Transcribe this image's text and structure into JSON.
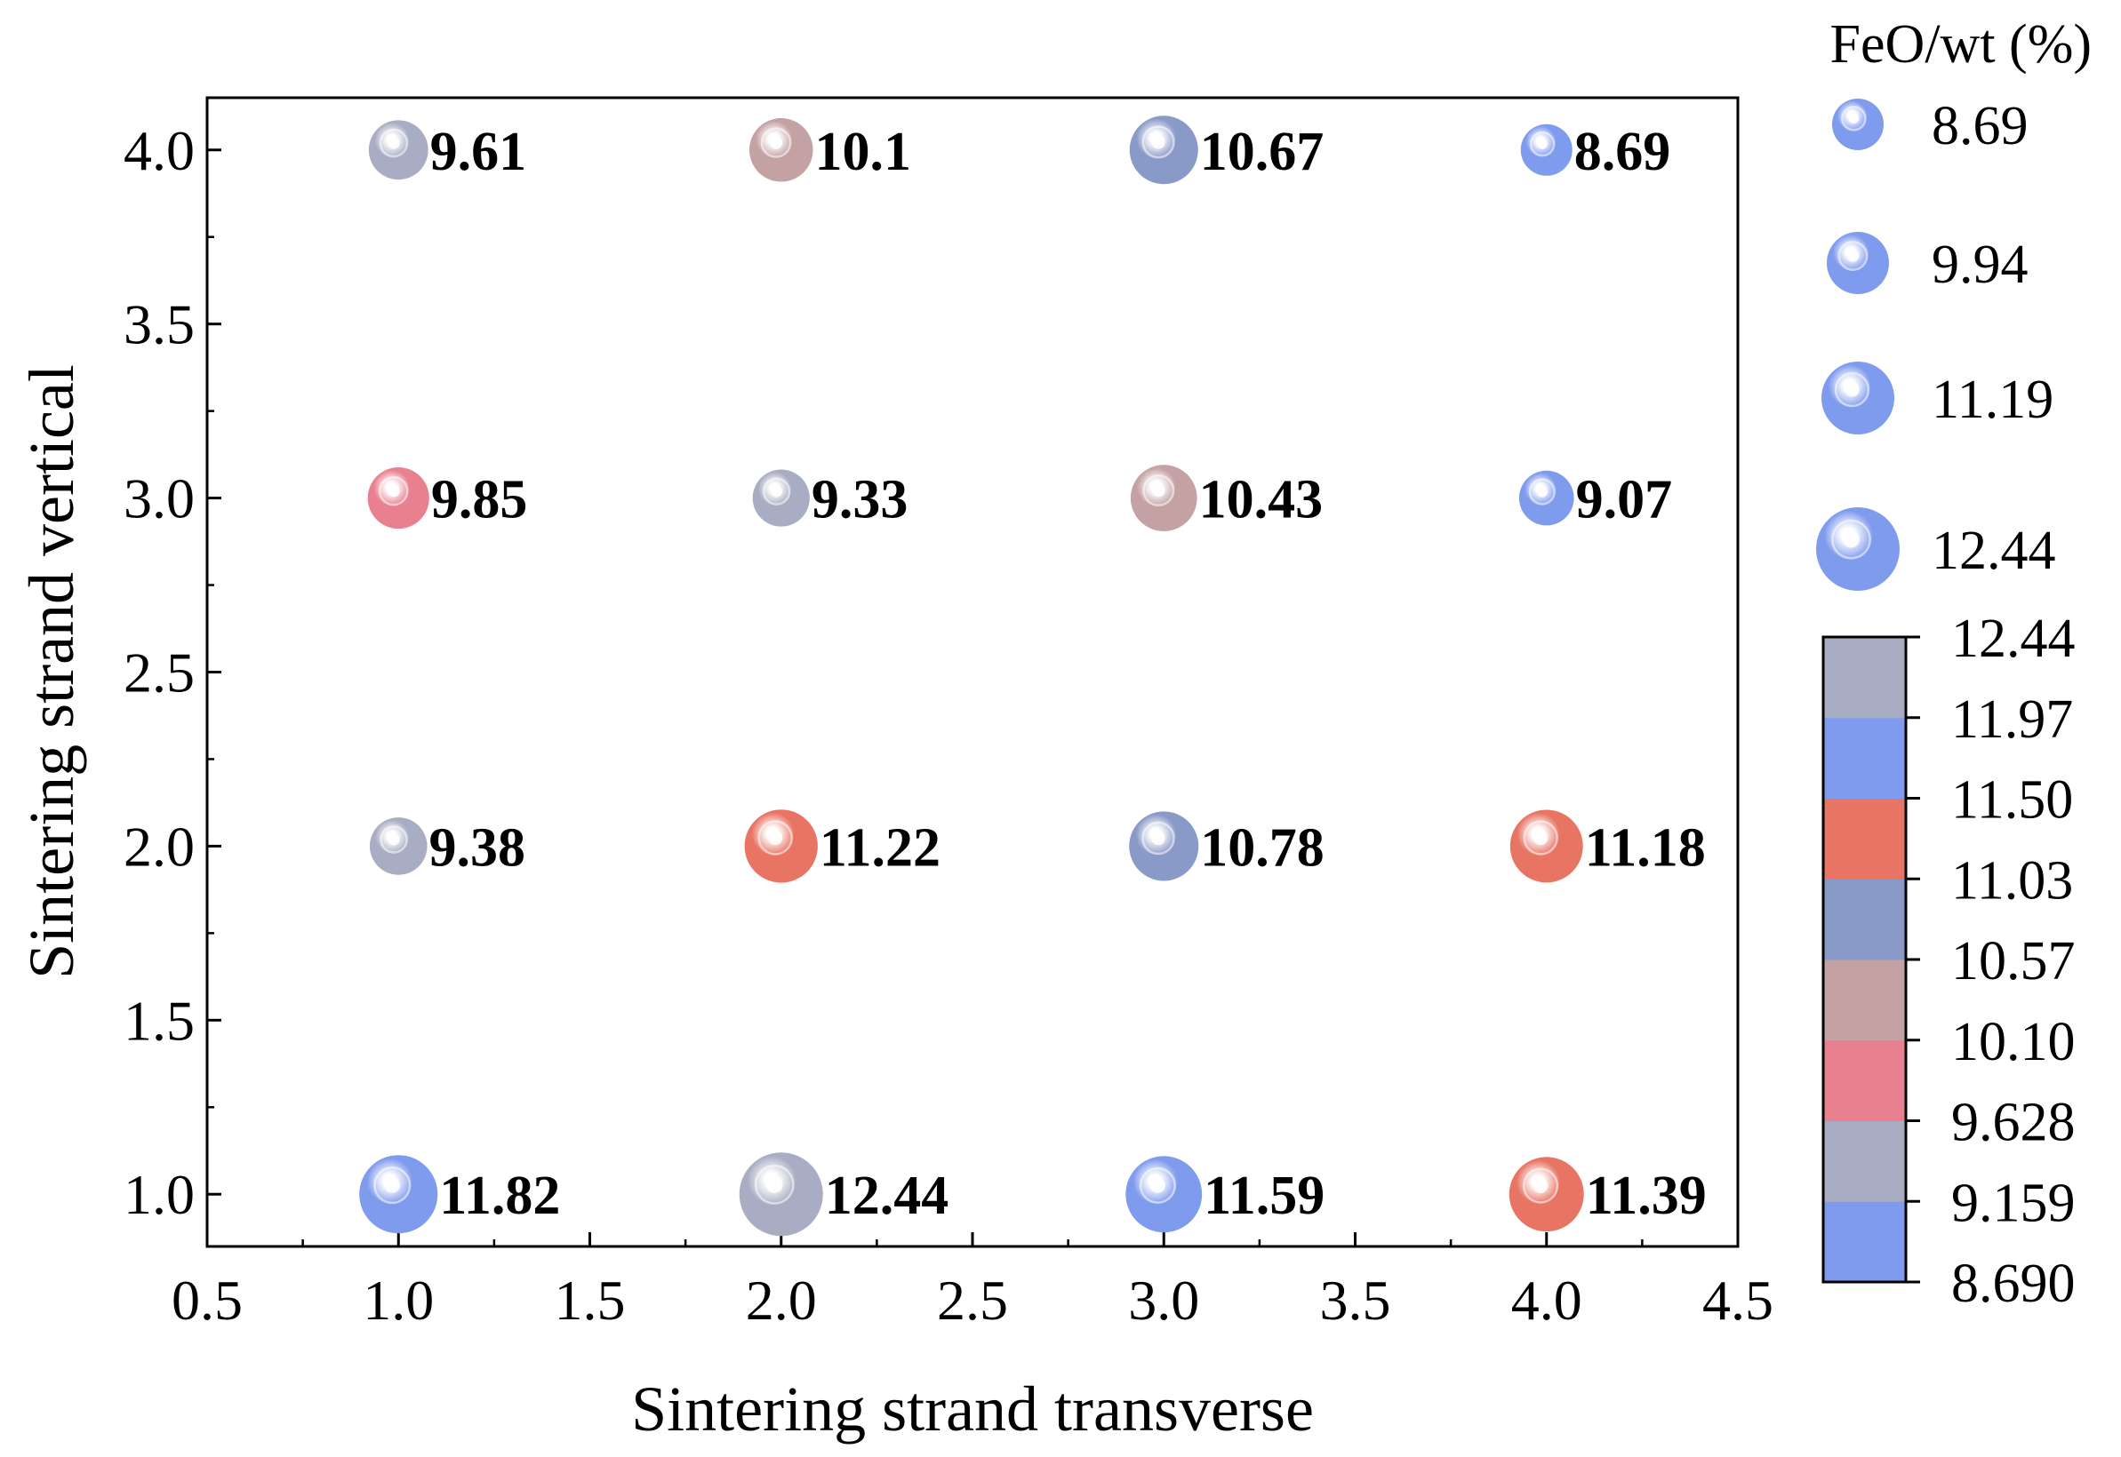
{
  "chart_data": {
    "type": "scatter",
    "subtype": "bubble",
    "xlabel": "Sintering strand transverse",
    "ylabel": "Sintering strand vertical",
    "xlim": [
      0.5,
      4.5
    ],
    "ylim": [
      0.85,
      4.15
    ],
    "xticks": [
      "0.5",
      "1.0",
      "1.5",
      "2.0",
      "2.5",
      "3.0",
      "3.5",
      "4.0",
      "4.5"
    ],
    "yticks": [
      "1.0",
      "1.5",
      "2.0",
      "2.5",
      "3.0",
      "3.5",
      "4.0"
    ],
    "points": [
      {
        "x": 1,
        "y": 4,
        "value": 9.61,
        "label": "9.61"
      },
      {
        "x": 2,
        "y": 4,
        "value": 10.1,
        "label": "10.1"
      },
      {
        "x": 3,
        "y": 4,
        "value": 10.67,
        "label": "10.67"
      },
      {
        "x": 4,
        "y": 4,
        "value": 8.69,
        "label": "8.69"
      },
      {
        "x": 1,
        "y": 3,
        "value": 9.85,
        "label": "9.85"
      },
      {
        "x": 2,
        "y": 3,
        "value": 9.33,
        "label": "9.33"
      },
      {
        "x": 3,
        "y": 3,
        "value": 10.43,
        "label": "10.43"
      },
      {
        "x": 4,
        "y": 3,
        "value": 9.07,
        "label": "9.07"
      },
      {
        "x": 1,
        "y": 2,
        "value": 9.38,
        "label": "9.38"
      },
      {
        "x": 2,
        "y": 2,
        "value": 11.22,
        "label": "11.22"
      },
      {
        "x": 3,
        "y": 2,
        "value": 10.78,
        "label": "10.78"
      },
      {
        "x": 4,
        "y": 2,
        "value": 11.18,
        "label": "11.18"
      },
      {
        "x": 1,
        "y": 1,
        "value": 11.82,
        "label": "11.82"
      },
      {
        "x": 2,
        "y": 1,
        "value": 12.44,
        "label": "12.44"
      },
      {
        "x": 3,
        "y": 1,
        "value": 11.59,
        "label": "11.59"
      },
      {
        "x": 4,
        "y": 1,
        "value": 11.39,
        "label": "11.39"
      }
    ],
    "size_legend": {
      "title": "FeO/wt (%)",
      "values": [
        8.69,
        9.94,
        11.19,
        12.44
      ],
      "labels": [
        "8.69",
        "9.94",
        "11.19",
        "12.44"
      ],
      "color": "#7f9bee"
    },
    "colorbar": {
      "min": 8.69,
      "max": 12.44,
      "tick_labels": [
        "8.690",
        "9.159",
        "9.628",
        "10.10",
        "10.57",
        "11.03",
        "11.50",
        "11.97",
        "12.44"
      ],
      "colors": [
        "#7f9bee",
        "#a8adc3",
        "#e98090",
        "#c4a1a3",
        "#8a9ac8",
        "#e87464",
        "#7f9bee",
        "#a8adc3"
      ]
    }
  }
}
